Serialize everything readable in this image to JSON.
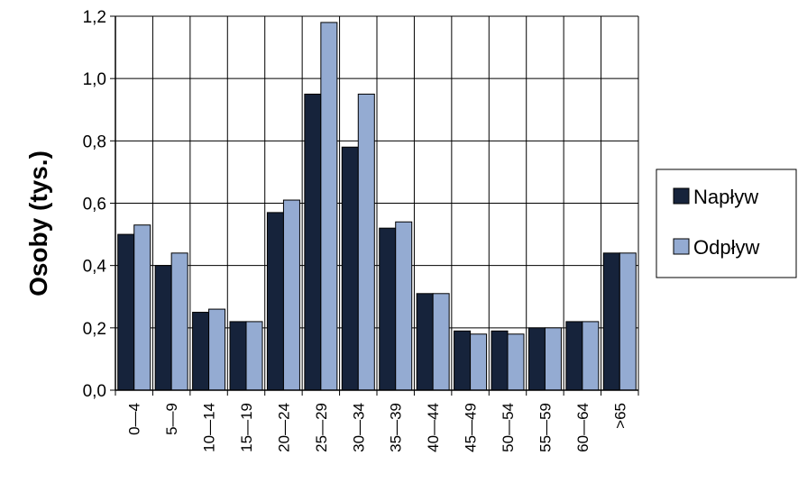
{
  "chart_data": {
    "type": "bar",
    "title": "",
    "xlabel": "",
    "ylabel": "Osoby (tys.)",
    "ylim": [
      0,
      1.2
    ],
    "yticks": [
      "0,0",
      "0,2",
      "0,4",
      "0,6",
      "0,8",
      "1,0",
      "1,2"
    ],
    "grid": true,
    "legend_position": "right",
    "categories": [
      "0—4",
      "5—9",
      "10—14",
      "15—19",
      "20—24",
      "25—29",
      "30—34",
      "35—39",
      "40—44",
      "45—49",
      "50—54",
      "55—59",
      "60—64",
      ">65"
    ],
    "series": [
      {
        "name": "Napływ",
        "color": "#16233b",
        "values": [
          0.5,
          0.4,
          0.25,
          0.22,
          0.57,
          0.95,
          0.78,
          0.52,
          0.31,
          0.19,
          0.19,
          0.2,
          0.22,
          0.44
        ]
      },
      {
        "name": "Odpływ",
        "color": "#94abd2",
        "values": [
          0.53,
          0.44,
          0.26,
          0.22,
          0.61,
          1.18,
          0.95,
          0.54,
          0.31,
          0.18,
          0.18,
          0.2,
          0.22,
          0.44
        ]
      }
    ]
  }
}
